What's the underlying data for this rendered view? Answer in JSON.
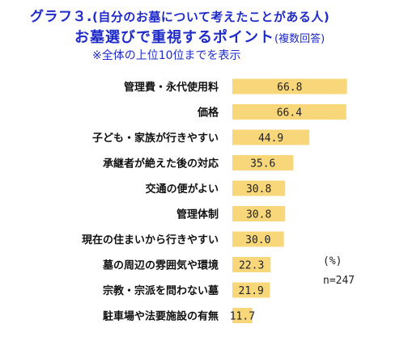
{
  "title": {
    "line1_prefix": "グラフ３.",
    "line1_paren": "(自分のお墓について考えたことがある人)",
    "line2_main": "お墓選びで重視するポイント",
    "line2_sub": "(複数回答)",
    "line3": "※全体の上位10位までを表示"
  },
  "notes": {
    "unit": "(%)",
    "n": "n=247"
  },
  "colors": {
    "bar": "#f8d77a",
    "title": "#1f2bc8"
  },
  "chart_data": {
    "type": "bar",
    "orientation": "horizontal",
    "categories": [
      "管理費・永代使用料",
      "価格",
      "子ども・家族が行きやすい",
      "承継者が絶えた後の対応",
      "交通の便がよい",
      "管理体制",
      "現在の住まいから行きやすい",
      "墓の周辺の雰囲気や環境",
      "宗教・宗派を問わない墓",
      "駐車場や法要施設の有無"
    ],
    "values": [
      66.8,
      66.4,
      44.9,
      35.6,
      30.8,
      30.8,
      30.0,
      22.3,
      21.9,
      11.7
    ],
    "value_labels": [
      "66.8",
      "66.4",
      "44.9",
      "35.6",
      "30.8",
      "30.8",
      "30.0",
      "22.3",
      "21.9",
      "11.7"
    ],
    "xlim": [
      0,
      100
    ],
    "unit": "%",
    "grid": false,
    "legend": "none"
  }
}
